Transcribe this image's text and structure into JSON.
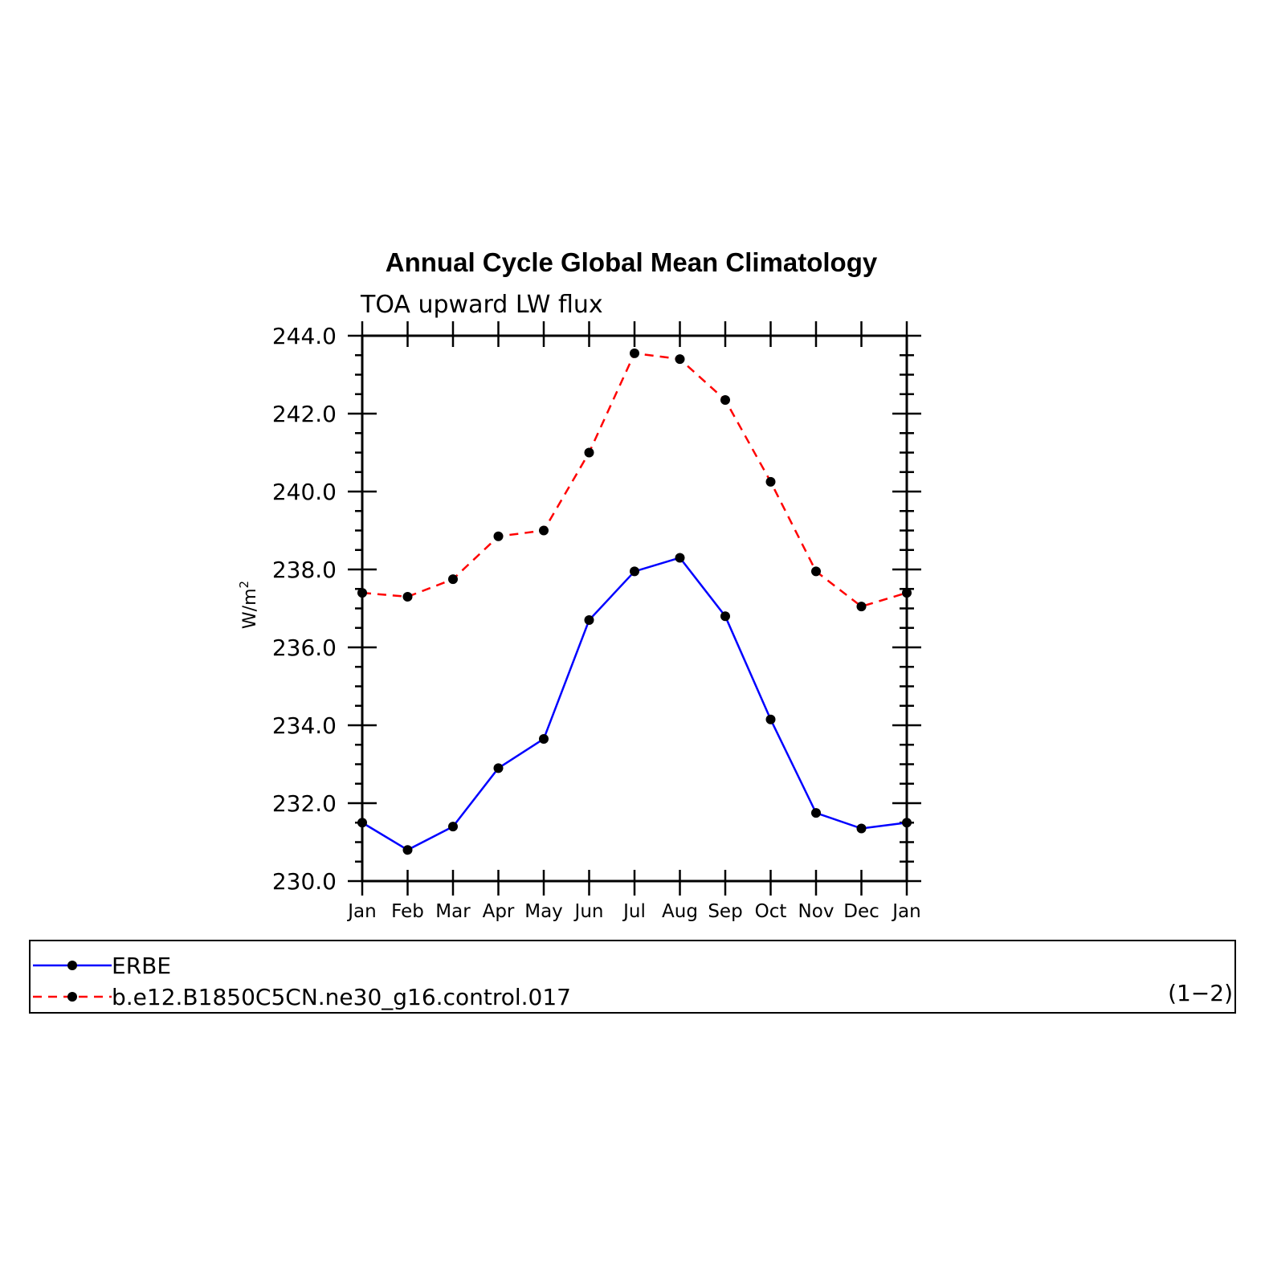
{
  "chart_data": {
    "type": "line",
    "title": "Annual Cycle Global Mean Climatology",
    "subtitle": "TOA upward LW flux",
    "ylabel": "W/m",
    "ylabel_superscript": "2",
    "xlabel": "",
    "categories": [
      "Jan",
      "Feb",
      "Mar",
      "Apr",
      "May",
      "Jun",
      "Jul",
      "Aug",
      "Sep",
      "Oct",
      "Nov",
      "Dec",
      "Jan"
    ],
    "ylim": [
      230.0,
      244.0
    ],
    "yticks": [
      "230.0",
      "232.0",
      "234.0",
      "236.0",
      "238.0",
      "240.0",
      "242.0",
      "244.0"
    ],
    "series": [
      {
        "name": "ERBE",
        "color": "#0000ff",
        "line_style": "solid",
        "marker": "filled-circle",
        "values": [
          231.5,
          230.8,
          231.4,
          232.9,
          233.65,
          236.7,
          237.95,
          238.3,
          236.8,
          234.15,
          231.75,
          231.35,
          231.5
        ]
      },
      {
        "name": "b.e12.B1850C5CN.ne30_g16.control.017",
        "color": "#ff0000",
        "line_style": "dashed",
        "marker": "filled-circle",
        "values": [
          237.4,
          237.3,
          237.75,
          238.85,
          239.0,
          241.0,
          243.55,
          243.4,
          242.35,
          240.25,
          237.95,
          237.05,
          237.4
        ]
      }
    ],
    "grid": false,
    "legend_position": "bottom",
    "panel_label": "(1−2)"
  }
}
